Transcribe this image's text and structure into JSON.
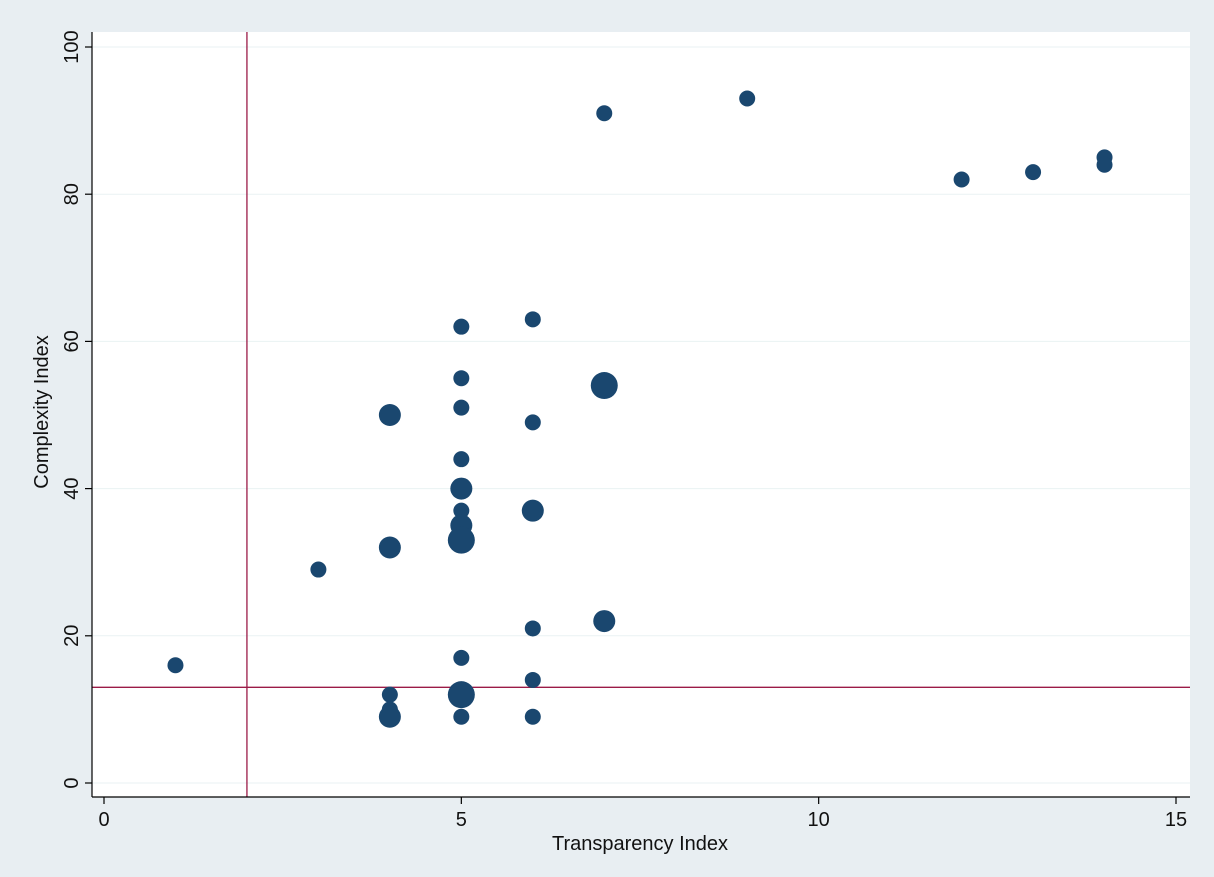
{
  "chart_data": {
    "type": "scatter",
    "title": "",
    "xlabel": "Transparency Index",
    "ylabel": "Complexity Index",
    "xlim": [
      0,
      15
    ],
    "ylim": [
      0,
      100
    ],
    "x_ticks": [
      0,
      5,
      10,
      15
    ],
    "y_ticks": [
      0,
      20,
      40,
      60,
      80,
      100
    ],
    "grid": "horizontal",
    "legend": "none",
    "reference_lines": {
      "x": 2,
      "y": 13,
      "color": "#9b1b47"
    },
    "marker_color": "#1a476f",
    "points": [
      {
        "x": 1,
        "y": 16,
        "size": 1
      },
      {
        "x": 3,
        "y": 29,
        "size": 1
      },
      {
        "x": 4,
        "y": 50,
        "size": 2
      },
      {
        "x": 4,
        "y": 32,
        "size": 2
      },
      {
        "x": 4,
        "y": 12,
        "size": 1
      },
      {
        "x": 4,
        "y": 10,
        "size": 1
      },
      {
        "x": 4,
        "y": 9,
        "size": 2
      },
      {
        "x": 5,
        "y": 62,
        "size": 1
      },
      {
        "x": 5,
        "y": 55,
        "size": 1
      },
      {
        "x": 5,
        "y": 51,
        "size": 1
      },
      {
        "x": 5,
        "y": 44,
        "size": 1
      },
      {
        "x": 5,
        "y": 40,
        "size": 2
      },
      {
        "x": 5,
        "y": 37,
        "size": 1
      },
      {
        "x": 5,
        "y": 35,
        "size": 2
      },
      {
        "x": 5,
        "y": 33,
        "size": 3
      },
      {
        "x": 5,
        "y": 17,
        "size": 1
      },
      {
        "x": 5,
        "y": 12,
        "size": 3
      },
      {
        "x": 5,
        "y": 9,
        "size": 1
      },
      {
        "x": 6,
        "y": 63,
        "size": 1
      },
      {
        "x": 6,
        "y": 49,
        "size": 1
      },
      {
        "x": 6,
        "y": 37,
        "size": 2
      },
      {
        "x": 6,
        "y": 21,
        "size": 1
      },
      {
        "x": 6,
        "y": 14,
        "size": 1
      },
      {
        "x": 6,
        "y": 9,
        "size": 1
      },
      {
        "x": 7,
        "y": 91,
        "size": 1
      },
      {
        "x": 7,
        "y": 54,
        "size": 3
      },
      {
        "x": 7,
        "y": 22,
        "size": 2
      },
      {
        "x": 9,
        "y": 93,
        "size": 1
      },
      {
        "x": 12,
        "y": 82,
        "size": 1
      },
      {
        "x": 13,
        "y": 83,
        "size": 1
      },
      {
        "x": 14,
        "y": 85,
        "size": 1
      },
      {
        "x": 14,
        "y": 84,
        "size": 1
      }
    ]
  }
}
